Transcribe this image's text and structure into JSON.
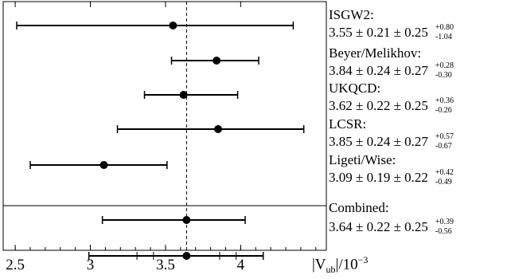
{
  "chart_data": {
    "type": "scatter",
    "subtype": "error-bar",
    "xlabel": "|V_ub|/10^-3",
    "xlabel_parts": {
      "prefix": "|V",
      "sub": "ub",
      "mid": "|/10",
      "sup": "−3"
    },
    "xlim": [
      2.42,
      4.57
    ],
    "xticks": [
      2.5,
      3,
      3.5,
      4
    ],
    "xtick_labels": [
      "2.5",
      "3",
      "3.5",
      "4"
    ],
    "reference_line": 3.64,
    "measurements": [
      {
        "name": "ISGW2:",
        "central": 3.55,
        "lo": 2.51,
        "hi": 4.35,
        "value_text": "3.55 ± 0.21 ± 0.25",
        "asym_up": "+0.80",
        "asym_down": "-1.04"
      },
      {
        "name": "Beyer/Melikhov:",
        "central": 3.84,
        "lo": 3.54,
        "hi": 4.12,
        "value_text": "3.84 ± 0.24 ± 0.27",
        "asym_up": "+0.28",
        "asym_down": "-0.30"
      },
      {
        "name": "UKQCD:",
        "central": 3.62,
        "lo": 3.36,
        "hi": 3.98,
        "value_text": "3.62 ± 0.22 ± 0.25",
        "asym_up": "+0.36",
        "asym_down": "-0.26"
      },
      {
        "name": "LCSR:",
        "central": 3.85,
        "lo": 3.18,
        "hi": 4.42,
        "value_text": "3.85 ± 0.24 ± 0.27",
        "asym_up": "+0.57",
        "asym_down": "-0.67"
      },
      {
        "name": "Ligeti/Wise:",
        "central": 3.09,
        "lo": 2.6,
        "hi": 3.51,
        "value_text": "3.09 ± 0.19 ± 0.22",
        "asym_up": "+0.42",
        "asym_down": "-0.49"
      }
    ],
    "combined": {
      "name": "Combined:",
      "value_text": "3.64 ± 0.22 ± 0.25",
      "asym_up": "+0.39",
      "asym_down": "-0.56",
      "points": [
        {
          "central": 3.64,
          "lo": 3.08,
          "hi": 4.03
        },
        {
          "central": 3.64,
          "lo": 2.99,
          "hi": 4.15,
          "inner_ticks": [
            3.31,
            3.42,
            3.86,
            3.97
          ]
        }
      ]
    }
  }
}
